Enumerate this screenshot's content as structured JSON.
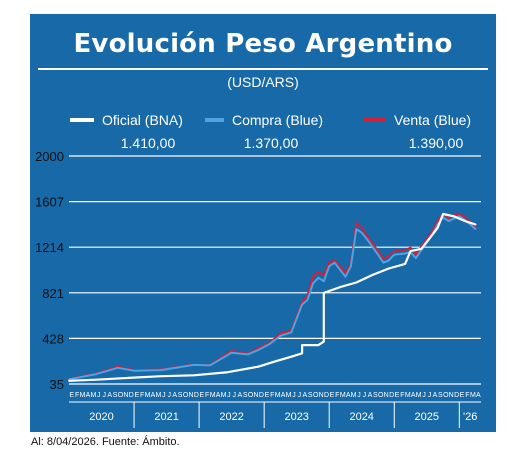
{
  "header": {
    "title": "Evolución Peso Argentino",
    "subtitle": "(USD/ARS)"
  },
  "footer": {
    "source": "Al: 8/04/2026. Fuente: Ámbito."
  },
  "legend": [
    {
      "label": "Oficial (BNA)",
      "value": "1.410,00",
      "color": "#ffffff"
    },
    {
      "label": "Compra (Blue)",
      "value": "1.370,00",
      "color": "#4fa3e0"
    },
    {
      "label": "Venta (Blue)",
      "value": "1.390,00",
      "color": "#d0203a"
    }
  ],
  "chart_data": {
    "type": "line",
    "title": "Evolución Peso Argentino",
    "subtitle": "(USD/ARS)",
    "ylim": [
      35,
      2000
    ],
    "yticks": [
      "2000",
      "1607",
      "1214",
      "821",
      "428",
      "35"
    ],
    "month_labels": [
      "E",
      "F",
      "M",
      "A",
      "M",
      "J",
      "J",
      "A",
      "S",
      "O",
      "N",
      "D"
    ],
    "years": [
      "2020",
      "2021",
      "2022",
      "2023",
      "2024",
      "2025",
      "'26"
    ],
    "grid": true,
    "series": [
      {
        "name": "Oficial (BNA)",
        "color": "#ffffff",
        "x": [
          "2020-01",
          "2020-06",
          "2020-12",
          "2021-06",
          "2021-12",
          "2022-06",
          "2022-12",
          "2023-03",
          "2023-06",
          "2023-08",
          "2023-08",
          "2023-11",
          "2023-12",
          "2023-12",
          "2024-03",
          "2024-06",
          "2024-09",
          "2024-12",
          "2025-03",
          "2025-04",
          "2025-06",
          "2025-09",
          "2025-10",
          "2025-12",
          "2026-02",
          "2026-04"
        ],
        "values": [
          63,
          72,
          88,
          102,
          110,
          135,
          185,
          230,
          270,
          300,
          370,
          370,
          400,
          820,
          870,
          910,
          975,
          1030,
          1070,
          1180,
          1200,
          1380,
          1500,
          1480,
          1440,
          1410
        ]
      },
      {
        "name": "Compra (Blue)",
        "color": "#4fa3e0",
        "x": [
          "2020-01",
          "2020-06",
          "2020-10",
          "2021-01",
          "2021-06",
          "2021-12",
          "2022-03",
          "2022-07",
          "2022-10",
          "2022-12",
          "2023-02",
          "2023-04",
          "2023-06",
          "2023-08",
          "2023-09",
          "2023-10",
          "2023-11",
          "2023-12",
          "2024-01",
          "2024-02",
          "2024-04",
          "2024-05",
          "2024-06",
          "2024-07",
          "2024-08",
          "2024-10",
          "2024-11",
          "2024-12",
          "2025-01",
          "2025-03",
          "2025-04",
          "2025-05",
          "2025-06",
          "2025-08",
          "2025-09",
          "2025-10",
          "2025-11",
          "2025-12",
          "2026-01",
          "2026-02",
          "2026-04"
        ],
        "values": [
          75,
          120,
          175,
          150,
          155,
          200,
          195,
          305,
          290,
          330,
          380,
          450,
          480,
          720,
          760,
          900,
          950,
          920,
          1050,
          1080,
          960,
          1050,
          1370,
          1340,
          1280,
          1150,
          1080,
          1100,
          1150,
          1160,
          1170,
          1120,
          1190,
          1320,
          1410,
          1470,
          1440,
          1460,
          1480,
          1450,
          1370
        ]
      },
      {
        "name": "Venta (Blue)",
        "color": "#d0203a",
        "x": [
          "2020-01",
          "2020-06",
          "2020-10",
          "2021-01",
          "2021-06",
          "2021-12",
          "2022-03",
          "2022-07",
          "2022-10",
          "2022-12",
          "2023-02",
          "2023-04",
          "2023-06",
          "2023-08",
          "2023-09",
          "2023-10",
          "2023-11",
          "2023-12",
          "2024-01",
          "2024-02",
          "2024-04",
          "2024-05",
          "2024-06",
          "2024-07",
          "2024-08",
          "2024-10",
          "2024-11",
          "2024-12",
          "2025-01",
          "2025-03",
          "2025-04",
          "2025-05",
          "2025-06",
          "2025-08",
          "2025-09",
          "2025-10",
          "2025-11",
          "2025-12",
          "2026-01",
          "2026-02",
          "2026-04"
        ],
        "values": [
          80,
          125,
          185,
          155,
          160,
          205,
          200,
          320,
          295,
          345,
          390,
          470,
          495,
          740,
          800,
          960,
          1000,
          970,
          1080,
          1100,
          990,
          1075,
          1420,
          1380,
          1310,
          1180,
          1110,
          1140,
          1180,
          1190,
          1210,
          1150,
          1220,
          1350,
          1440,
          1500,
          1465,
          1490,
          1500,
          1475,
          1390
        ]
      }
    ]
  }
}
